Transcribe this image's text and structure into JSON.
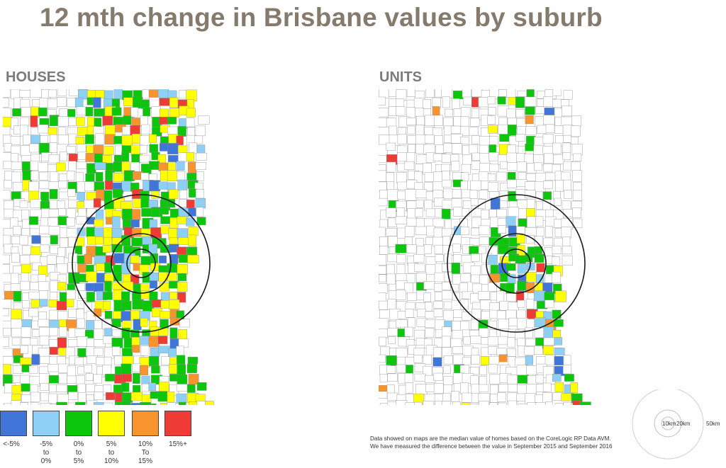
{
  "title": "12 mth change in Brisbane values by suburb",
  "panels": [
    {
      "key": "houses",
      "label": "HOUSES"
    },
    {
      "key": "units",
      "label": "UNITS"
    }
  ],
  "legend": [
    {
      "label": "<-5%",
      "color": "#3f76d8"
    },
    {
      "label": "-5%\nto\n0%",
      "color": "#8ed0f5"
    },
    {
      "label": "0%\nto\n5%",
      "color": "#0cc60c"
    },
    {
      "label": "5%\nto\n10%",
      "color": "#ffff00"
    },
    {
      "label": "10%\nTo\n15%",
      "color": "#f7942e"
    },
    {
      "label": "15%+",
      "color": "#ef3b36"
    }
  ],
  "footnote": "Data showed on maps are the median value of homes based on the CoreLogic RP Data AVM. We have measured the difference between the value in September 2015 and September 2016",
  "scale": {
    "inner": "10km",
    "middle": "20km",
    "outer": "50km"
  },
  "map_colors": {
    "outline": "#8c8c8c",
    "background": "#ffffff",
    "ring": "#1a1a1a"
  }
}
